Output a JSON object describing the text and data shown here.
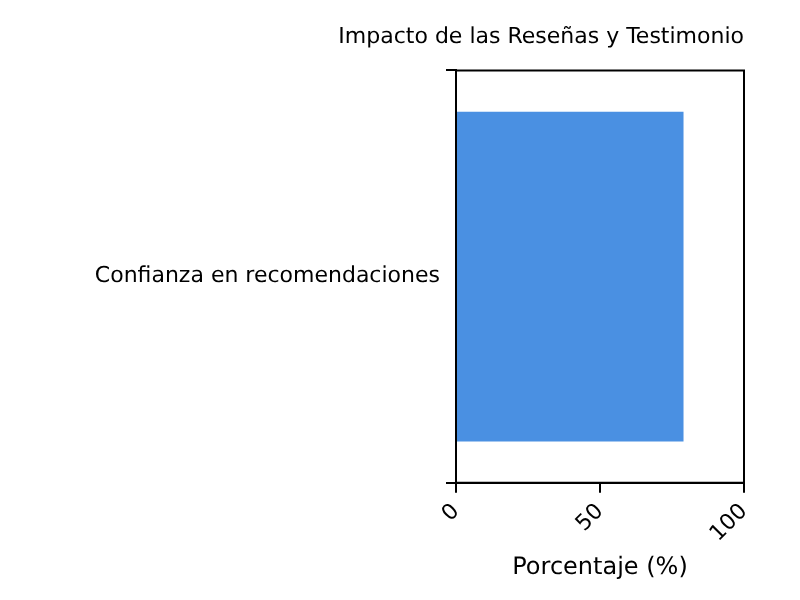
{
  "chart_data": {
    "type": "bar",
    "orientation": "horizontal",
    "title": "Impacto de las Reseñas y Testimonio",
    "xlabel": "Porcentaje (%)",
    "categories": [
      "Confianza en recomendaciones"
    ],
    "values": [
      79
    ],
    "color": "#4a90e2",
    "xlim": [
      0,
      100
    ],
    "xticks": [
      0,
      50,
      100
    ],
    "grid": false,
    "legend": false
  }
}
